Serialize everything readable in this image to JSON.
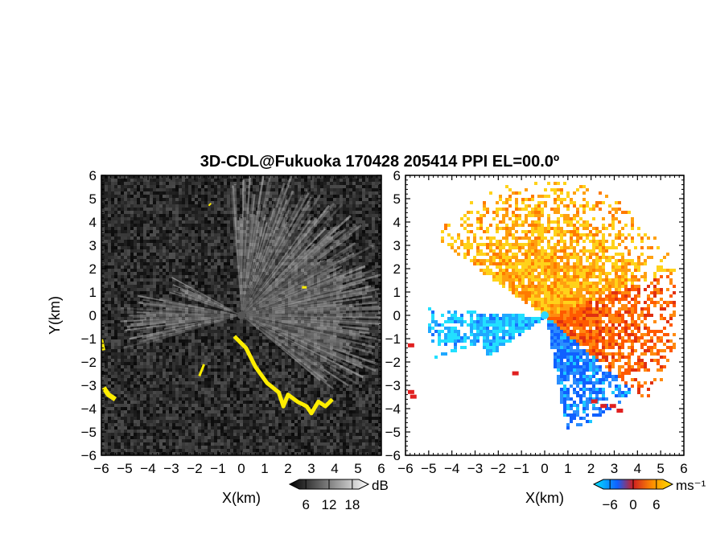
{
  "chart_data": [
    {
      "type": "heatmap",
      "title": "3D-CDL@Fukuoka 170428 205414 PPI EL=00.0º",
      "panel": "left",
      "quantity": "SNR",
      "xlabel": "X(km)",
      "ylabel": "Y(km)",
      "xlim": [
        -6,
        6
      ],
      "ylim": [
        -6,
        6
      ],
      "x_ticks": [
        "−6",
        "−5",
        "−4",
        "−3",
        "−2",
        "−1",
        "0",
        "1",
        "2",
        "3",
        "4",
        "5",
        "6"
      ],
      "y_ticks": [
        "6",
        "5",
        "4",
        "3",
        "2",
        "1",
        "0",
        "−1",
        "−2",
        "−3",
        "−4",
        "−5",
        "−6"
      ],
      "colorbar": {
        "unit": "dB",
        "ticks": [
          6,
          12,
          18
        ],
        "tick_labels": [
          "6",
          "12",
          "18"
        ],
        "colors": [
          "#000000",
          "#ffffff"
        ],
        "overlay_color": "#ffee00"
      }
    },
    {
      "type": "heatmap",
      "panel": "right",
      "quantity": "Doppler velocity",
      "xlabel": "X(km)",
      "xlim": [
        -6,
        6
      ],
      "ylim": [
        -6,
        6
      ],
      "x_ticks": [
        "−6",
        "−5",
        "−4",
        "−3",
        "−2",
        "−1",
        "0",
        "1",
        "2",
        "3",
        "4",
        "5",
        "6"
      ],
      "y_ticks": [
        "6",
        "5",
        "4",
        "3",
        "2",
        "1",
        "0",
        "−1",
        "−2",
        "−3",
        "−4",
        "−5",
        "−6"
      ],
      "colorbar": {
        "unit": "ms⁻¹",
        "ticks": [
          -6,
          0,
          6
        ],
        "tick_labels": [
          "−6",
          "0",
          "6"
        ],
        "colors": [
          "#00e5ff",
          "#1060ff",
          "#d02020",
          "#ff9000",
          "#ffe000"
        ]
      }
    }
  ]
}
